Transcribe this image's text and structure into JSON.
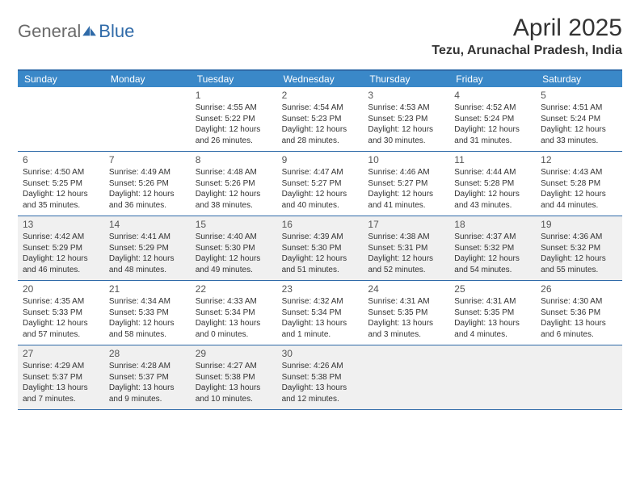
{
  "logo": {
    "part1": "General",
    "part2": "Blue"
  },
  "title": "April 2025",
  "location": "Tezu, Arunachal Pradesh, India",
  "colors": {
    "header_bg": "#3a88c8",
    "border": "#2f6aa8",
    "shaded": "#f0f0f0",
    "text": "#333333",
    "logo_gray": "#6a6a6a",
    "logo_blue": "#2f6aa8"
  },
  "day_names": [
    "Sunday",
    "Monday",
    "Tuesday",
    "Wednesday",
    "Thursday",
    "Friday",
    "Saturday"
  ],
  "weeks": [
    [
      {
        "empty": true
      },
      {
        "empty": true
      },
      {
        "num": "1",
        "sunrise": "Sunrise: 4:55 AM",
        "sunset": "Sunset: 5:22 PM",
        "day1": "Daylight: 12 hours",
        "day2": "and 26 minutes."
      },
      {
        "num": "2",
        "sunrise": "Sunrise: 4:54 AM",
        "sunset": "Sunset: 5:23 PM",
        "day1": "Daylight: 12 hours",
        "day2": "and 28 minutes."
      },
      {
        "num": "3",
        "sunrise": "Sunrise: 4:53 AM",
        "sunset": "Sunset: 5:23 PM",
        "day1": "Daylight: 12 hours",
        "day2": "and 30 minutes."
      },
      {
        "num": "4",
        "sunrise": "Sunrise: 4:52 AM",
        "sunset": "Sunset: 5:24 PM",
        "day1": "Daylight: 12 hours",
        "day2": "and 31 minutes."
      },
      {
        "num": "5",
        "sunrise": "Sunrise: 4:51 AM",
        "sunset": "Sunset: 5:24 PM",
        "day1": "Daylight: 12 hours",
        "day2": "and 33 minutes."
      }
    ],
    [
      {
        "num": "6",
        "sunrise": "Sunrise: 4:50 AM",
        "sunset": "Sunset: 5:25 PM",
        "day1": "Daylight: 12 hours",
        "day2": "and 35 minutes."
      },
      {
        "num": "7",
        "sunrise": "Sunrise: 4:49 AM",
        "sunset": "Sunset: 5:26 PM",
        "day1": "Daylight: 12 hours",
        "day2": "and 36 minutes."
      },
      {
        "num": "8",
        "sunrise": "Sunrise: 4:48 AM",
        "sunset": "Sunset: 5:26 PM",
        "day1": "Daylight: 12 hours",
        "day2": "and 38 minutes."
      },
      {
        "num": "9",
        "sunrise": "Sunrise: 4:47 AM",
        "sunset": "Sunset: 5:27 PM",
        "day1": "Daylight: 12 hours",
        "day2": "and 40 minutes."
      },
      {
        "num": "10",
        "sunrise": "Sunrise: 4:46 AM",
        "sunset": "Sunset: 5:27 PM",
        "day1": "Daylight: 12 hours",
        "day2": "and 41 minutes."
      },
      {
        "num": "11",
        "sunrise": "Sunrise: 4:44 AM",
        "sunset": "Sunset: 5:28 PM",
        "day1": "Daylight: 12 hours",
        "day2": "and 43 minutes."
      },
      {
        "num": "12",
        "sunrise": "Sunrise: 4:43 AM",
        "sunset": "Sunset: 5:28 PM",
        "day1": "Daylight: 12 hours",
        "day2": "and 44 minutes."
      }
    ],
    [
      {
        "num": "13",
        "sunrise": "Sunrise: 4:42 AM",
        "sunset": "Sunset: 5:29 PM",
        "day1": "Daylight: 12 hours",
        "day2": "and 46 minutes."
      },
      {
        "num": "14",
        "sunrise": "Sunrise: 4:41 AM",
        "sunset": "Sunset: 5:29 PM",
        "day1": "Daylight: 12 hours",
        "day2": "and 48 minutes."
      },
      {
        "num": "15",
        "sunrise": "Sunrise: 4:40 AM",
        "sunset": "Sunset: 5:30 PM",
        "day1": "Daylight: 12 hours",
        "day2": "and 49 minutes."
      },
      {
        "num": "16",
        "sunrise": "Sunrise: 4:39 AM",
        "sunset": "Sunset: 5:30 PM",
        "day1": "Daylight: 12 hours",
        "day2": "and 51 minutes."
      },
      {
        "num": "17",
        "sunrise": "Sunrise: 4:38 AM",
        "sunset": "Sunset: 5:31 PM",
        "day1": "Daylight: 12 hours",
        "day2": "and 52 minutes."
      },
      {
        "num": "18",
        "sunrise": "Sunrise: 4:37 AM",
        "sunset": "Sunset: 5:32 PM",
        "day1": "Daylight: 12 hours",
        "day2": "and 54 minutes."
      },
      {
        "num": "19",
        "sunrise": "Sunrise: 4:36 AM",
        "sunset": "Sunset: 5:32 PM",
        "day1": "Daylight: 12 hours",
        "day2": "and 55 minutes."
      }
    ],
    [
      {
        "num": "20",
        "sunrise": "Sunrise: 4:35 AM",
        "sunset": "Sunset: 5:33 PM",
        "day1": "Daylight: 12 hours",
        "day2": "and 57 minutes."
      },
      {
        "num": "21",
        "sunrise": "Sunrise: 4:34 AM",
        "sunset": "Sunset: 5:33 PM",
        "day1": "Daylight: 12 hours",
        "day2": "and 58 minutes."
      },
      {
        "num": "22",
        "sunrise": "Sunrise: 4:33 AM",
        "sunset": "Sunset: 5:34 PM",
        "day1": "Daylight: 13 hours",
        "day2": "and 0 minutes."
      },
      {
        "num": "23",
        "sunrise": "Sunrise: 4:32 AM",
        "sunset": "Sunset: 5:34 PM",
        "day1": "Daylight: 13 hours",
        "day2": "and 1 minute."
      },
      {
        "num": "24",
        "sunrise": "Sunrise: 4:31 AM",
        "sunset": "Sunset: 5:35 PM",
        "day1": "Daylight: 13 hours",
        "day2": "and 3 minutes."
      },
      {
        "num": "25",
        "sunrise": "Sunrise: 4:31 AM",
        "sunset": "Sunset: 5:35 PM",
        "day1": "Daylight: 13 hours",
        "day2": "and 4 minutes."
      },
      {
        "num": "26",
        "sunrise": "Sunrise: 4:30 AM",
        "sunset": "Sunset: 5:36 PM",
        "day1": "Daylight: 13 hours",
        "day2": "and 6 minutes."
      }
    ],
    [
      {
        "num": "27",
        "sunrise": "Sunrise: 4:29 AM",
        "sunset": "Sunset: 5:37 PM",
        "day1": "Daylight: 13 hours",
        "day2": "and 7 minutes."
      },
      {
        "num": "28",
        "sunrise": "Sunrise: 4:28 AM",
        "sunset": "Sunset: 5:37 PM",
        "day1": "Daylight: 13 hours",
        "day2": "and 9 minutes."
      },
      {
        "num": "29",
        "sunrise": "Sunrise: 4:27 AM",
        "sunset": "Sunset: 5:38 PM",
        "day1": "Daylight: 13 hours",
        "day2": "and 10 minutes."
      },
      {
        "num": "30",
        "sunrise": "Sunrise: 4:26 AM",
        "sunset": "Sunset: 5:38 PM",
        "day1": "Daylight: 13 hours",
        "day2": "and 12 minutes."
      },
      {
        "empty": true
      },
      {
        "empty": true
      },
      {
        "empty": true
      }
    ]
  ],
  "shaded_rows": [
    2,
    4
  ]
}
